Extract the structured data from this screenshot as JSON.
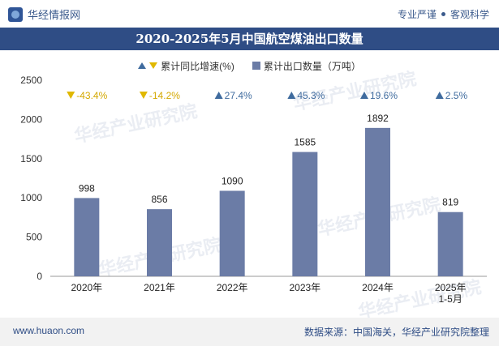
{
  "header": {
    "brand": "华经情报网",
    "tagline_left": "专业严谨",
    "tagline_right": "客观科学"
  },
  "watermark": "华经产业研究院",
  "watermark_url": "www.huaon.com",
  "colors": {
    "title_bg": "#2f4d85",
    "bar": "#6b7ca6",
    "up": "#3f6b9e",
    "down": "#e0b800"
  },
  "footer": {
    "left": "www.huaon.com",
    "right": "数据来源：中国海关，华经产业研究院整理"
  },
  "chart_data": {
    "type": "bar",
    "title": "2020-2025年5月中国航空煤油出口数量",
    "legend": [
      "累计同比增速(%)",
      "累计出口数量（万吨）"
    ],
    "categories": [
      "2020年",
      "2021年",
      "2022年",
      "2023年",
      "2024年",
      "2025年\n1-5月"
    ],
    "series": [
      {
        "name": "累计出口数量（万吨）",
        "values": [
          998,
          856,
          1090,
          1585,
          1892,
          819
        ]
      },
      {
        "name": "累计同比增速(%)",
        "values": [
          -43.4,
          -14.2,
          27.4,
          45.3,
          19.6,
          2.5
        ]
      }
    ],
    "growth_labels": [
      "-43.4%",
      "-14.2%",
      "27.4%",
      "45.3%",
      "19.6%",
      "2.5%"
    ],
    "value_labels": [
      "998",
      "856",
      "1090",
      "1585",
      "1892",
      "819"
    ],
    "yticks": [
      0,
      500,
      1000,
      1500,
      2000,
      2500
    ],
    "ylim": [
      0,
      2500
    ]
  }
}
